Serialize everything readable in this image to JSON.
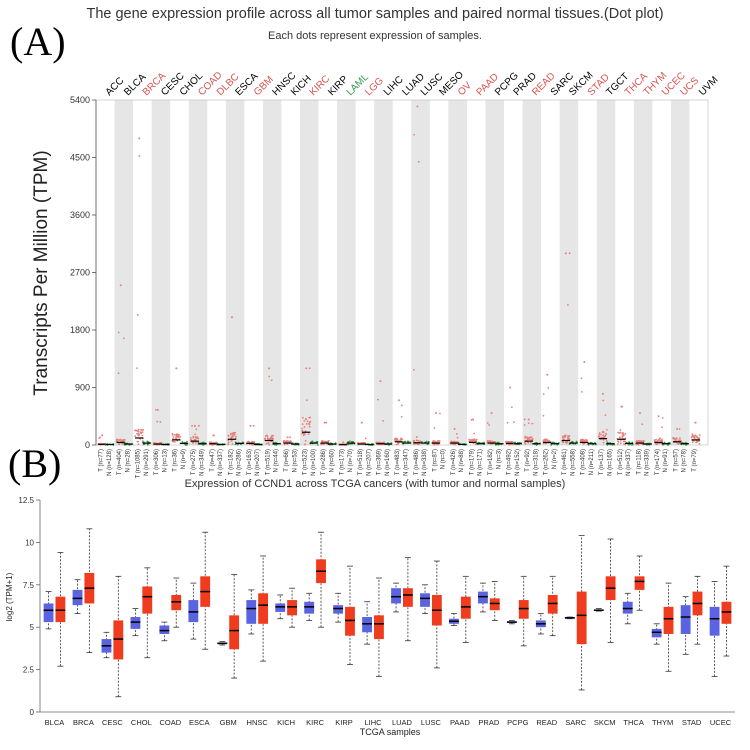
{
  "colors": {
    "tumor": "#e8807a",
    "normal": "#2e9b48",
    "highlight": "#d9534f",
    "laml": "#2e9b48",
    "box_normal": "#5b64e0",
    "box_tumor": "#f03c1e"
  },
  "panel_a": {
    "label": "(A)",
    "title": "The gene expression profile across all tumor samples and paired normal tissues.(Dot plot)",
    "subtitle": "Each dots represent expression of samples.",
    "chart_data": {
      "type": "scatter",
      "ylabel": "Transcripts Per Million (TPM)",
      "ylim": [
        0,
        5400
      ],
      "yticks": [
        0,
        900,
        1800,
        2700,
        3600,
        4500,
        5400
      ],
      "grid": "alternating gray column bands",
      "cancers": [
        {
          "name": "ACC",
          "color": "black",
          "tumor_n": "T (n=77)",
          "normal_n": "N (n=128)",
          "tumor_median": 10,
          "tumor_max": 150,
          "normal_median": 8
        },
        {
          "name": "BLCA",
          "color": "black",
          "tumor_n": "T (n=404)",
          "normal_n": "N (n=28)",
          "tumor_median": 40,
          "tumor_max": 2500,
          "normal_median": 15
        },
        {
          "name": "BRCA",
          "color": "red",
          "tumor_n": "T (n=1085)",
          "normal_n": "N (n=291)",
          "tumor_median": 110,
          "tumor_max": 4800,
          "normal_median": 30
        },
        {
          "name": "CESC",
          "color": "black",
          "tumor_n": "T (n=306)",
          "normal_n": "N (n=13)",
          "tumor_median": 15,
          "tumor_max": 550,
          "normal_median": 8
        },
        {
          "name": "CHOL",
          "color": "black",
          "tumor_n": "T (n=36)",
          "normal_n": "N (n=9)",
          "tumor_median": 80,
          "tumor_max": 1200,
          "normal_median": 25
        },
        {
          "name": "COAD",
          "color": "red",
          "tumor_n": "T (n=275)",
          "normal_n": "N (n=349)",
          "tumor_median": 60,
          "tumor_max": 300,
          "normal_median": 20
        },
        {
          "name": "DLBC",
          "color": "red",
          "tumor_n": "T (n=47)",
          "normal_n": "N (n=337)",
          "tumor_median": 20,
          "tumor_max": 150,
          "normal_median": 10
        },
        {
          "name": "ESCA",
          "color": "black",
          "tumor_n": "T (n=182)",
          "normal_n": "N (n=286)",
          "tumor_median": 90,
          "tumor_max": 2000,
          "normal_median": 25
        },
        {
          "name": "GBM",
          "color": "red",
          "tumor_n": "T (n=163)",
          "normal_n": "N (n=207)",
          "tumor_median": 25,
          "tumor_max": 300,
          "normal_median": 10
        },
        {
          "name": "HNSC",
          "color": "black",
          "tumor_n": "T (n=519)",
          "normal_n": "N (n=44)",
          "tumor_median": 70,
          "tumor_max": 1200,
          "normal_median": 20
        },
        {
          "name": "KICH",
          "color": "black",
          "tumor_n": "T (n=66)",
          "normal_n": "N (n=53)",
          "tumor_median": 30,
          "tumor_max": 120,
          "normal_median": 15
        },
        {
          "name": "KIRC",
          "color": "red",
          "tumor_n": "T (n=523)",
          "normal_n": "N (n=100)",
          "tumor_median": 200,
          "tumor_max": 1200,
          "normal_median": 30
        },
        {
          "name": "KIRP",
          "color": "black",
          "tumor_n": "T (n=286)",
          "normal_n": "N (n=60)",
          "tumor_median": 30,
          "tumor_max": 350,
          "normal_median": 15
        },
        {
          "name": "LAML",
          "color": "green",
          "tumor_n": "T (n=173)",
          "normal_n": "N (n=70)",
          "tumor_median": 5,
          "tumor_max": 40,
          "normal_median": 30
        },
        {
          "name": "LGG",
          "color": "red",
          "tumor_n": "T (n=518)",
          "normal_n": "N (n=207)",
          "tumor_median": 15,
          "tumor_max": 350,
          "normal_median": 8
        },
        {
          "name": "LIHC",
          "color": "black",
          "tumor_n": "T (n=369)",
          "normal_n": "N (n=160)",
          "tumor_median": 20,
          "tumor_max": 1000,
          "normal_median": 15
        },
        {
          "name": "LUAD",
          "color": "black",
          "tumor_n": "T (n=483)",
          "normal_n": "N (n=347)",
          "tumor_median": 50,
          "tumor_max": 700,
          "normal_median": 30
        },
        {
          "name": "LUSC",
          "color": "black",
          "tumor_n": "T (n=486)",
          "normal_n": "N (n=338)",
          "tumor_median": 35,
          "tumor_max": 5300,
          "normal_median": 30
        },
        {
          "name": "MESO",
          "color": "black",
          "tumor_n": "T (n=87)",
          "normal_n": "N (n=0)",
          "tumor_median": 30,
          "tumor_max": 500,
          "normal_median": 0
        },
        {
          "name": "OV",
          "color": "red",
          "tumor_n": "T (n=426)",
          "normal_n": "N (n=88)",
          "tumor_median": 30,
          "tumor_max": 250,
          "normal_median": 10
        },
        {
          "name": "PAAD",
          "color": "red",
          "tumor_n": "T (n=179)",
          "normal_n": "N (n=171)",
          "tumor_median": 40,
          "tumor_max": 400,
          "normal_median": 20
        },
        {
          "name": "PCPG",
          "color": "black",
          "tumor_n": "T (n=182)",
          "normal_n": "N (n=3)",
          "tumor_median": 30,
          "tumor_max": 500,
          "normal_median": 20
        },
        {
          "name": "PRAD",
          "color": "black",
          "tumor_n": "T (n=492)",
          "normal_n": "N (n=152)",
          "tumor_median": 25,
          "tumor_max": 900,
          "normal_median": 20
        },
        {
          "name": "READ",
          "color": "red",
          "tumor_n": "T (n=92)",
          "normal_n": "N (n=318)",
          "tumor_median": 60,
          "tumor_max": 400,
          "normal_median": 20
        },
        {
          "name": "SARC",
          "color": "black",
          "tumor_n": "T (n=262)",
          "normal_n": "N (n=2)",
          "tumor_median": 40,
          "tumor_max": 1100,
          "normal_median": 20
        },
        {
          "name": "SKCM",
          "color": "black",
          "tumor_n": "T (n=461)",
          "normal_n": "N (n=558)",
          "tumor_median": 70,
          "tumor_max": 3000,
          "normal_median": 30
        },
        {
          "name": "STAD",
          "color": "red",
          "tumor_n": "T (n=408)",
          "normal_n": "N (n=211)",
          "tumor_median": 40,
          "tumor_max": 1300,
          "normal_median": 20
        },
        {
          "name": "TGCT",
          "color": "black",
          "tumor_n": "T (n=137)",
          "normal_n": "N (n=165)",
          "tumor_median": 100,
          "tumor_max": 800,
          "normal_median": 20
        },
        {
          "name": "THCA",
          "color": "red",
          "tumor_n": "T (n=512)",
          "normal_n": "N (n=337)",
          "tumor_median": 90,
          "tumor_max": 600,
          "normal_median": 25
        },
        {
          "name": "THYM",
          "color": "red",
          "tumor_n": "T (n=118)",
          "normal_n": "N (n=339)",
          "tumor_median": 30,
          "tumor_max": 500,
          "normal_median": 15
        },
        {
          "name": "UCEC",
          "color": "red",
          "tumor_n": "T (n=174)",
          "normal_n": "N (n=91)",
          "tumor_median": 40,
          "tumor_max": 450,
          "normal_median": 20
        },
        {
          "name": "UCS",
          "color": "red",
          "tumor_n": "T (n=57)",
          "normal_n": "N (n=78)",
          "tumor_median": 50,
          "tumor_max": 250,
          "normal_median": 20
        },
        {
          "name": "UVM",
          "color": "black",
          "tumor_n": "T (n=79)",
          "normal_n": "",
          "tumor_median": 80,
          "tumor_max": 350,
          "normal_median": 0
        }
      ]
    }
  },
  "panel_b": {
    "label": "(B)",
    "title": "Expression of CCND1 across TCGA cancers (with tumor and normal samples)",
    "chart_data": {
      "type": "box",
      "xlabel": "TCGA samples",
      "ylabel": "log2 (TPM+1)",
      "ylim": [
        0,
        12.5
      ],
      "yticks": [
        0,
        2.5,
        5,
        7.5,
        10,
        12.5
      ],
      "categories": [
        "BLCA",
        "BRCA",
        "CESC",
        "CHOL",
        "COAD",
        "ESCA",
        "GBM",
        "HNSC",
        "KICH",
        "KIRC",
        "KIRP",
        "LIHC",
        "LUAD",
        "LUSC",
        "PAAD",
        "PRAD",
        "PCPG",
        "READ",
        "SARC",
        "SKCM",
        "THCA",
        "THYM",
        "STAD",
        "UCEC"
      ],
      "series": [
        {
          "name": "Normal",
          "boxes": [
            [
              4.9,
              5.3,
              6.0,
              6.4,
              7.1
            ],
            [
              5.8,
              6.3,
              6.7,
              7.2,
              7.8
            ],
            [
              3.2,
              3.5,
              3.9,
              4.3,
              4.7
            ],
            [
              4.5,
              4.9,
              5.3,
              5.6,
              6.1
            ],
            [
              4.2,
              4.6,
              4.8,
              5.1,
              5.3
            ],
            [
              4.3,
              5.3,
              5.9,
              6.6,
              7.6
            ],
            [
              3.95,
              4.0,
              4.05,
              4.1,
              4.15
            ],
            [
              4.6,
              5.2,
              6.1,
              6.6,
              7.2
            ],
            [
              5.5,
              5.9,
              6.2,
              6.4,
              6.9
            ],
            [
              5.4,
              5.8,
              6.2,
              6.5,
              7.0
            ],
            [
              5.3,
              5.8,
              6.1,
              6.3,
              7.0
            ],
            [
              4.0,
              4.7,
              5.2,
              5.6,
              6.5
            ],
            [
              5.9,
              6.4,
              6.8,
              7.3,
              7.6
            ],
            [
              5.8,
              6.2,
              6.7,
              7.0,
              7.5
            ],
            [
              5.1,
              5.2,
              5.35,
              5.5,
              5.8
            ],
            [
              5.9,
              6.4,
              6.8,
              7.1,
              7.6
            ],
            [
              5.2,
              5.25,
              5.3,
              5.35,
              5.4
            ],
            [
              4.6,
              5.0,
              5.2,
              5.4,
              5.8
            ],
            [
              5.5,
              5.5,
              5.55,
              5.6,
              5.6
            ],
            [
              5.95,
              6.0,
              6.0,
              6.05,
              6.1
            ],
            [
              5.2,
              5.8,
              6.1,
              6.5,
              7.0
            ],
            [
              4.0,
              4.4,
              4.7,
              4.9,
              5.2
            ],
            [
              3.4,
              4.6,
              5.6,
              6.3,
              6.8
            ],
            [
              2.1,
              4.5,
              5.5,
              6.2,
              7.7
            ]
          ]
        },
        {
          "name": "Tumor",
          "boxes": [
            [
              2.7,
              5.3,
              6.0,
              6.8,
              9.4
            ],
            [
              3.5,
              6.4,
              7.3,
              8.2,
              10.8
            ],
            [
              0.9,
              3.1,
              4.3,
              5.4,
              8.0
            ],
            [
              3.2,
              5.8,
              6.8,
              7.4,
              8.5
            ],
            [
              5.0,
              6.0,
              6.5,
              6.9,
              7.9
            ],
            [
              3.7,
              6.2,
              7.1,
              8.0,
              10.6
            ],
            [
              2.0,
              3.7,
              4.8,
              5.7,
              8.1
            ],
            [
              3.0,
              5.2,
              6.3,
              7.0,
              9.2
            ],
            [
              5.0,
              5.7,
              6.2,
              6.6,
              7.3
            ],
            [
              5.0,
              7.6,
              8.3,
              9.0,
              10.6
            ],
            [
              2.8,
              4.5,
              5.4,
              6.2,
              8.6
            ],
            [
              2.1,
              4.3,
              5.2,
              5.7,
              7.9
            ],
            [
              4.2,
              6.2,
              6.9,
              7.3,
              9.1
            ],
            [
              2.6,
              5.1,
              6.0,
              6.9,
              8.9
            ],
            [
              4.1,
              5.5,
              6.2,
              6.8,
              8.0
            ],
            [
              5.4,
              6.0,
              6.4,
              6.7,
              7.7
            ],
            [
              3.9,
              5.5,
              6.1,
              6.6,
              8.0
            ],
            [
              4.5,
              5.8,
              6.4,
              6.9,
              8.0
            ],
            [
              1.3,
              4.0,
              5.7,
              7.1,
              10.4
            ],
            [
              4.1,
              6.6,
              7.3,
              8.0,
              10.2
            ],
            [
              6.0,
              7.2,
              7.7,
              8.0,
              9.2
            ],
            [
              2.4,
              4.6,
              5.5,
              6.2,
              7.6
            ],
            [
              4.0,
              5.7,
              6.4,
              7.1,
              8.0
            ],
            [
              3.3,
              5.2,
              5.9,
              6.5,
              8.6
            ]
          ]
        }
      ]
    }
  }
}
